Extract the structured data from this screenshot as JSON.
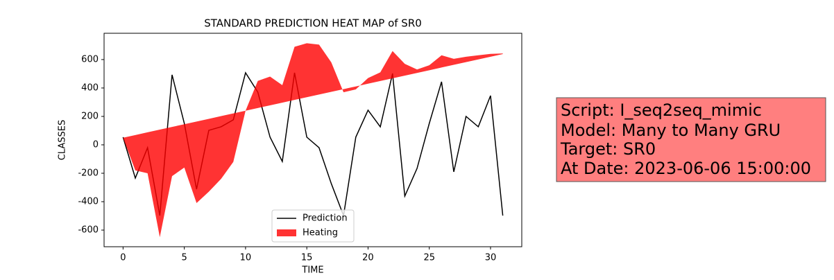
{
  "chart_data": {
    "type": "line",
    "title": "STANDARD PREDICTION HEAT MAP of SR0",
    "x_label": "TIME",
    "y_label": "CLASSES",
    "x": [
      0,
      1,
      2,
      3,
      4,
      5,
      6,
      7,
      8,
      9,
      10,
      11,
      12,
      13,
      14,
      15,
      16,
      17,
      18,
      19,
      20,
      21,
      22,
      23,
      24,
      25,
      26,
      27,
      28,
      29,
      30,
      31
    ],
    "series": [
      {
        "name": "Prediction",
        "type": "line",
        "color": "#000000",
        "values": [
          54,
          -234,
          -20,
          -498,
          493,
          151,
          -312,
          102,
          127,
          176,
          507,
          371,
          54,
          -117,
          507,
          54,
          -20,
          -273,
          -498,
          54,
          244,
          127,
          502,
          -361,
          -166,
          151,
          444,
          -190,
          200,
          127,
          346,
          -498
        ]
      },
      {
        "name": "Heating",
        "type": "area",
        "color": "#ff0000",
        "opacity": 0.8,
        "values": [
          50,
          -180,
          -200,
          -650,
          -220,
          -160,
          -410,
          -330,
          -240,
          -120,
          240,
          450,
          480,
          420,
          690,
          715,
          705,
          580,
          370,
          390,
          470,
          510,
          660,
          570,
          530,
          560,
          630,
          605,
          620,
          630,
          640,
          643
        ],
        "baseline": [
          50,
          69,
          88,
          107,
          126,
          145,
          164,
          183,
          202,
          221,
          240,
          259,
          278,
          297,
          316,
          335,
          354,
          373,
          392,
          411,
          430,
          449,
          468,
          487,
          506,
          525,
          544,
          563,
          582,
          601,
          620,
          639
        ]
      }
    ],
    "xlim": [
      -1.55,
      32.55
    ],
    "ylim": [
      -717,
      785
    ],
    "xticks": [
      0,
      5,
      10,
      15,
      20,
      25,
      30
    ],
    "yticks": [
      -600,
      -400,
      -200,
      0,
      200,
      400,
      600
    ],
    "legend": "lower center",
    "grid": false
  },
  "info_box": {
    "lines": [
      "Script: I_seq2seq_mimic",
      "Model: Many to Many GRU",
      "Target: SR0",
      "At Date: 2023-06-06 15:00:00"
    ],
    "color": "#ff7f7f"
  }
}
